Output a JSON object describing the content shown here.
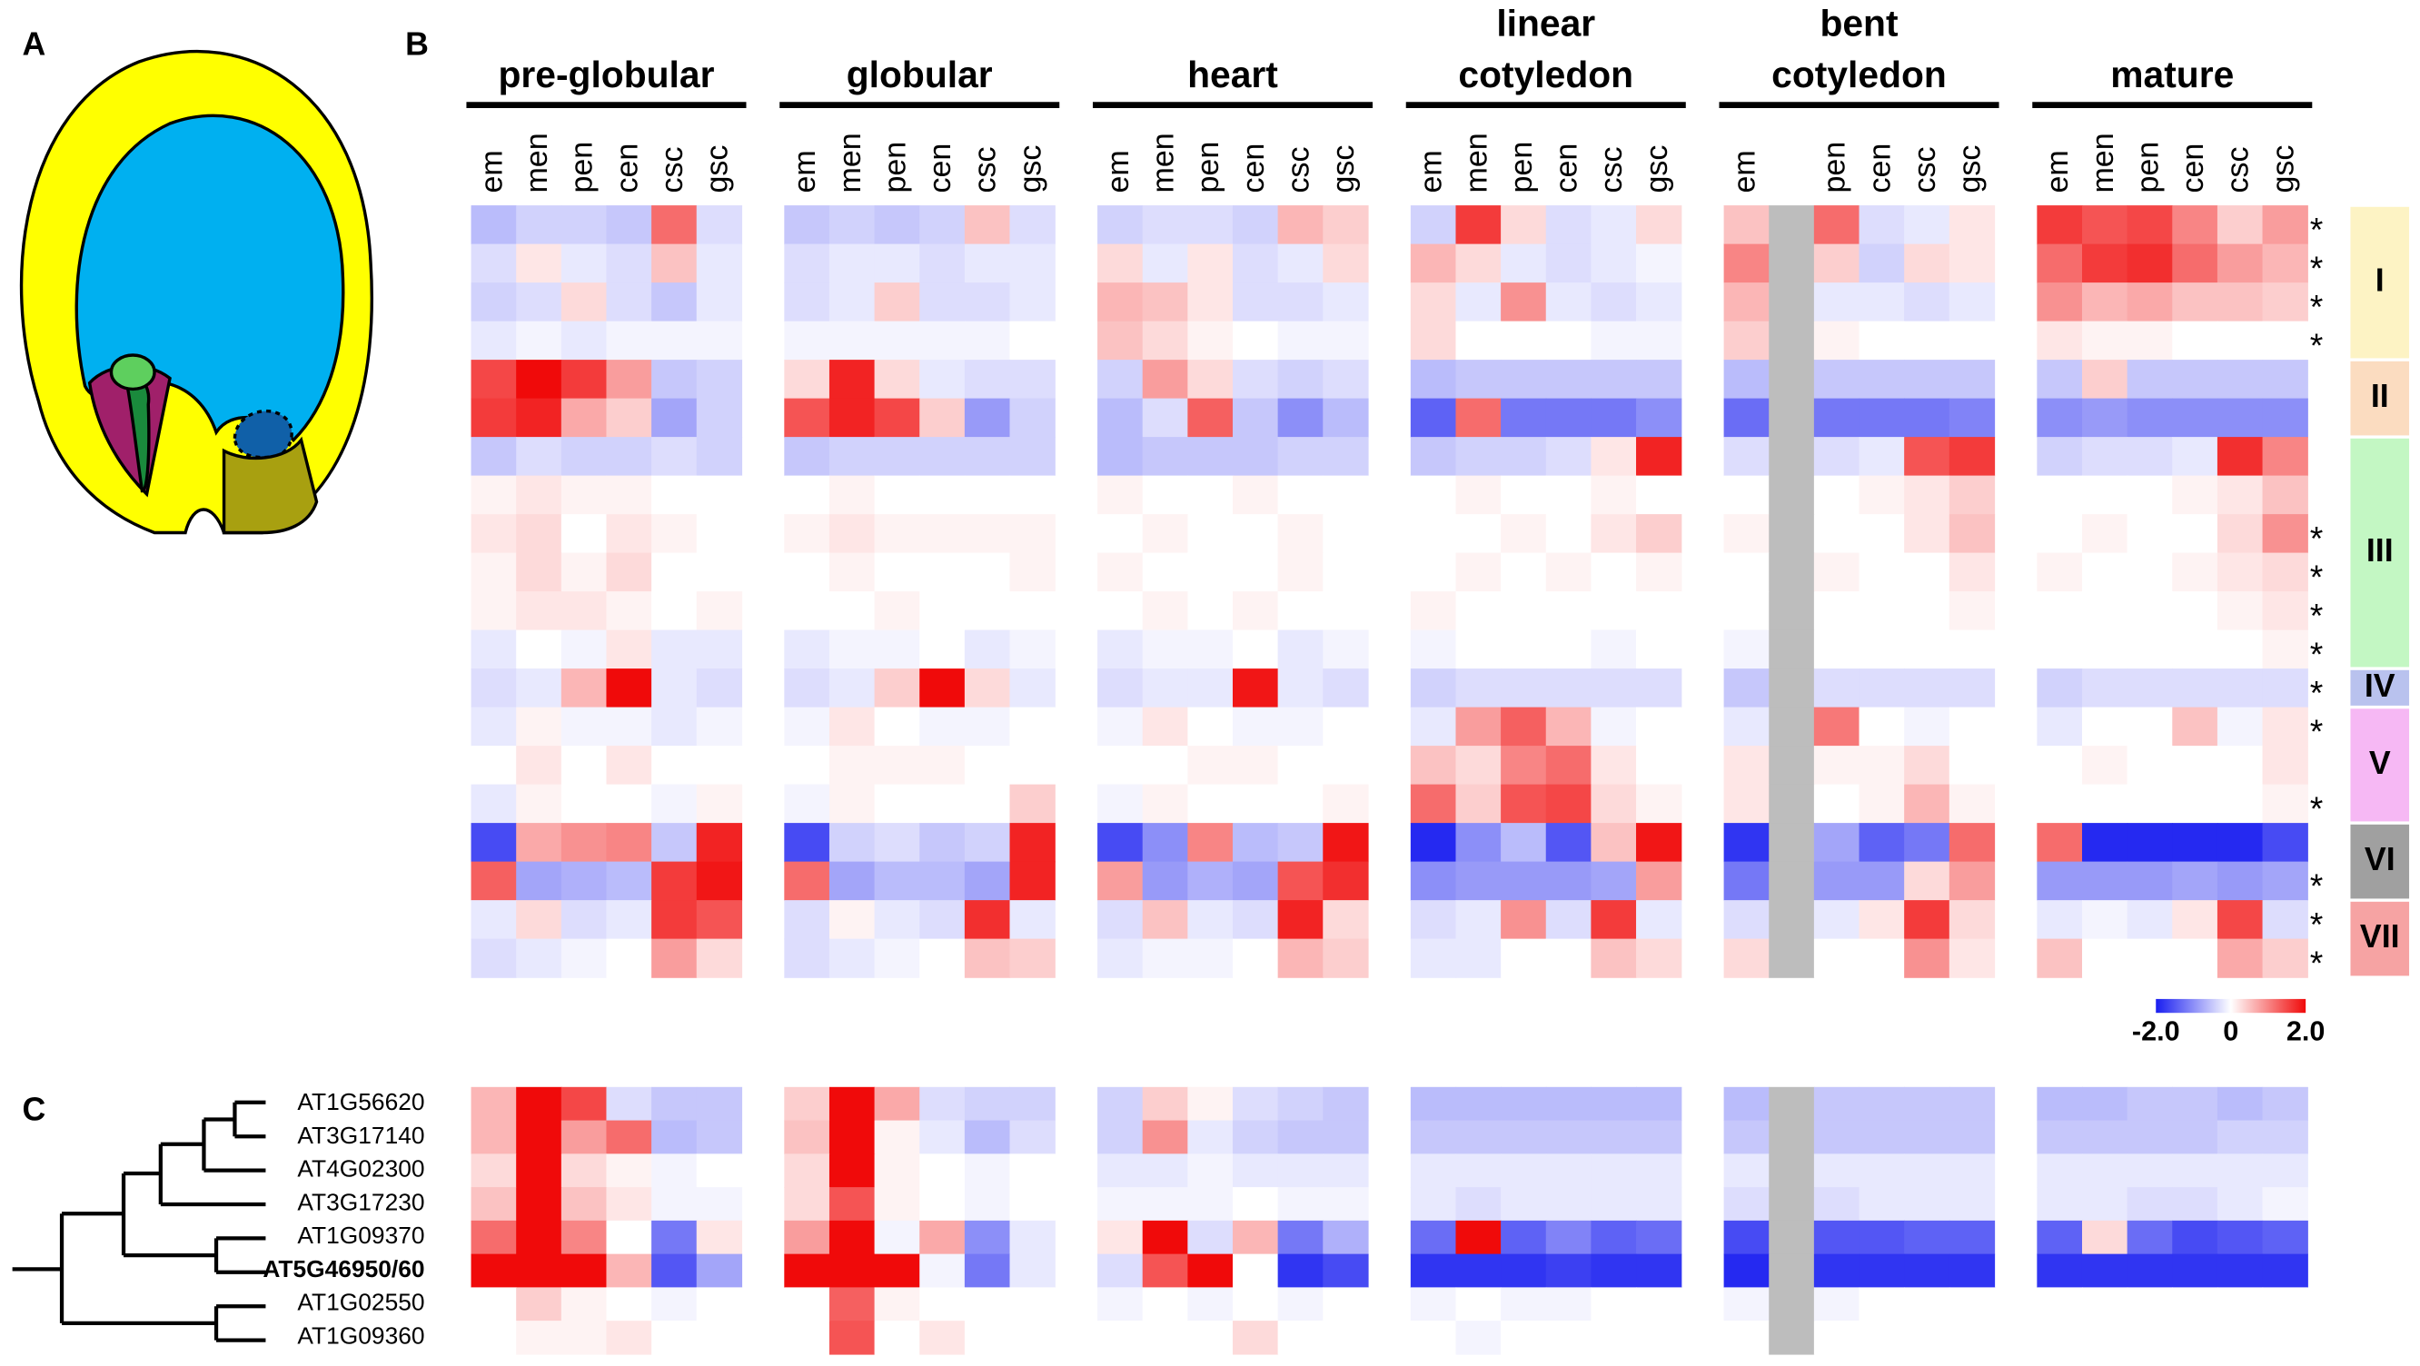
{
  "panel_labels": [
    "A",
    "B",
    "C"
  ],
  "stages": [
    {
      "name": [
        "pre-globular"
      ],
      "columns": [
        "em",
        "men",
        "pen",
        "cen",
        "csc",
        "gsc"
      ]
    },
    {
      "name": [
        "globular"
      ],
      "columns": [
        "em",
        "men",
        "pen",
        "cen",
        "csc",
        "gsc"
      ]
    },
    {
      "name": [
        "heart"
      ],
      "columns": [
        "em",
        "men",
        "pen",
        "cen",
        "csc",
        "gsc"
      ]
    },
    {
      "name": [
        "linear",
        "cotyledon"
      ],
      "columns": [
        "em",
        "men",
        "pen",
        "cen",
        "csc",
        "gsc"
      ]
    },
    {
      "name": [
        "bent",
        "cotyledon"
      ],
      "columns": [
        "em",
        null,
        "pen",
        "cen",
        "csc",
        "gsc"
      ]
    },
    {
      "name": [
        "mature"
      ],
      "columns": [
        "em",
        "men",
        "pen",
        "cen",
        "csc",
        "gsc"
      ]
    }
  ],
  "colorbar": {
    "lim": [
      -2,
      2
    ],
    "ticks": [
      {
        "value": -2,
        "label": "-2.0"
      },
      0,
      {
        "value": 2,
        "label": "2.0"
      }
    ]
  },
  "panel_b": {
    "rows": [
      [
        -0.6,
        -0.4,
        -0.4,
        -0.5,
        1.2,
        -0.3,
        -0.5,
        -0.4,
        -0.5,
        -0.4,
        0.5,
        -0.3,
        -0.4,
        -0.3,
        -0.3,
        -0.4,
        0.6,
        0.4,
        -0.4,
        1.6,
        0.3,
        -0.3,
        -0.2,
        0.3,
        0.5,
        null,
        1.2,
        -0.3,
        -0.2,
        0.2,
        1.6,
        1.4,
        1.5,
        1.0,
        0.4,
        0.8
      ],
      [
        -0.3,
        0.2,
        -0.2,
        -0.3,
        0.5,
        -0.2,
        -0.3,
        -0.2,
        -0.2,
        -0.3,
        -0.2,
        -0.2,
        0.3,
        -0.2,
        0.2,
        -0.3,
        -0.2,
        0.3,
        0.6,
        0.3,
        -0.2,
        -0.3,
        -0.2,
        -0.1,
        1.0,
        null,
        0.4,
        -0.4,
        0.3,
        0.2,
        1.2,
        1.6,
        1.7,
        1.2,
        0.8,
        0.6
      ],
      [
        -0.4,
        -0.3,
        0.3,
        -0.3,
        -0.5,
        -0.2,
        -0.3,
        -0.2,
        0.4,
        -0.3,
        -0.3,
        -0.2,
        0.6,
        0.5,
        0.2,
        -0.3,
        -0.3,
        -0.2,
        0.3,
        -0.2,
        0.9,
        -0.2,
        -0.3,
        -0.2,
        0.6,
        null,
        -0.2,
        -0.2,
        -0.3,
        -0.2,
        0.9,
        0.6,
        0.7,
        0.5,
        0.5,
        0.4
      ],
      [
        -0.2,
        -0.1,
        -0.2,
        -0.1,
        -0.1,
        -0.1,
        -0.1,
        -0.1,
        -0.1,
        -0.1,
        -0.1,
        0,
        0.5,
        0.3,
        0.1,
        0,
        -0.1,
        -0.1,
        0.3,
        0,
        0,
        0,
        -0.1,
        -0.1,
        0.4,
        null,
        0.1,
        0,
        0,
        0,
        0.2,
        0.1,
        0.1,
        0,
        0,
        0
      ],
      [
        1.5,
        2.0,
        1.6,
        0.8,
        -0.5,
        -0.4,
        0.3,
        1.8,
        0.3,
        -0.2,
        -0.3,
        -0.3,
        -0.4,
        0.8,
        0.3,
        -0.3,
        -0.4,
        -0.3,
        -0.6,
        -0.5,
        -0.5,
        -0.5,
        -0.5,
        -0.5,
        -0.6,
        null,
        -0.5,
        -0.5,
        -0.5,
        -0.5,
        -0.5,
        0.4,
        -0.5,
        -0.5,
        -0.5,
        -0.5
      ],
      [
        1.6,
        1.8,
        0.7,
        0.4,
        -0.8,
        -0.4,
        1.4,
        1.8,
        1.5,
        0.4,
        -0.9,
        -0.4,
        -0.6,
        -0.3,
        1.3,
        -0.5,
        -1.0,
        -0.6,
        -1.4,
        1.2,
        -1.2,
        -1.2,
        -1.2,
        -1.0,
        -1.3,
        null,
        -1.2,
        -1.2,
        -1.2,
        -1.1,
        -1.0,
        -0.9,
        -1.0,
        -1.0,
        -1.0,
        -1.0
      ],
      [
        -0.5,
        -0.3,
        -0.4,
        -0.4,
        -0.3,
        -0.4,
        -0.5,
        -0.4,
        -0.4,
        -0.4,
        -0.4,
        -0.4,
        -0.6,
        -0.5,
        -0.5,
        -0.5,
        -0.4,
        -0.4,
        -0.5,
        -0.4,
        -0.4,
        -0.3,
        0.2,
        1.8,
        -0.3,
        null,
        -0.3,
        -0.2,
        1.4,
        1.6,
        -0.4,
        -0.3,
        -0.3,
        -0.2,
        1.7,
        1.0
      ],
      [
        0.1,
        0.2,
        0.1,
        0.1,
        0,
        0,
        0,
        0.1,
        0,
        0,
        0,
        0,
        0.1,
        0,
        0,
        0.1,
        0,
        0,
        0,
        0.1,
        0,
        0,
        0.1,
        0,
        0,
        null,
        0,
        0.1,
        0.2,
        0.4,
        0,
        0,
        0,
        0.1,
        0.2,
        0.5
      ],
      [
        0.2,
        0.3,
        0,
        0.2,
        0.1,
        0,
        0.1,
        0.2,
        0.1,
        0.1,
        0.1,
        0.1,
        0,
        0.1,
        0,
        0,
        0.1,
        0,
        0,
        0,
        0.1,
        0,
        0.2,
        0.4,
        0.1,
        null,
        0,
        0,
        0.2,
        0.5,
        0,
        0.1,
        0,
        0,
        0.3,
        0.9
      ],
      [
        0.1,
        0.3,
        0.1,
        0.3,
        0,
        0,
        0,
        0.1,
        0,
        0,
        0,
        0.1,
        0.1,
        0,
        0,
        0,
        0.1,
        0,
        0,
        0.1,
        0,
        0.1,
        0,
        0.1,
        0,
        null,
        0.1,
        0,
        0,
        0.2,
        0.1,
        0,
        0,
        0.1,
        0.2,
        0.3
      ],
      [
        0.1,
        0.2,
        0.2,
        0.1,
        0,
        0.1,
        0,
        0,
        0.1,
        0,
        0,
        0,
        0,
        0.1,
        0,
        0.1,
        0,
        0,
        0.1,
        0,
        0,
        0,
        0,
        0,
        0,
        null,
        0,
        0,
        0,
        0.1,
        0,
        0,
        0,
        0,
        0.1,
        0.2
      ],
      [
        -0.2,
        0,
        -0.1,
        0.2,
        -0.2,
        -0.2,
        -0.2,
        -0.1,
        -0.1,
        0,
        -0.2,
        -0.1,
        -0.2,
        -0.1,
        -0.1,
        0,
        -0.2,
        -0.1,
        -0.1,
        0,
        0,
        0,
        -0.1,
        0,
        -0.1,
        null,
        0,
        0,
        0,
        0,
        0,
        0,
        0,
        0,
        0,
        0.1
      ],
      [
        -0.3,
        -0.2,
        0.6,
        2.0,
        -0.2,
        -0.3,
        -0.3,
        -0.2,
        0.4,
        2.0,
        0.3,
        -0.2,
        -0.3,
        -0.2,
        -0.2,
        1.9,
        -0.2,
        -0.3,
        -0.4,
        -0.3,
        -0.3,
        -0.3,
        -0.3,
        -0.3,
        -0.5,
        null,
        -0.3,
        -0.3,
        -0.3,
        -0.3,
        -0.4,
        -0.3,
        -0.3,
        -0.3,
        -0.3,
        -0.3
      ],
      [
        -0.2,
        0.1,
        -0.1,
        -0.1,
        -0.2,
        -0.1,
        -0.1,
        0.2,
        0,
        -0.1,
        -0.1,
        0,
        -0.1,
        0.2,
        0,
        -0.1,
        -0.1,
        0,
        -0.2,
        0.8,
        1.3,
        0.6,
        -0.1,
        0,
        -0.2,
        null,
        1.1,
        0,
        -0.1,
        0,
        -0.2,
        0,
        0,
        0.5,
        -0.1,
        0.2
      ],
      [
        0,
        0.2,
        0,
        0.2,
        0,
        0,
        0,
        0.1,
        0.1,
        0.1,
        0,
        0,
        0,
        0,
        0.1,
        0.1,
        0,
        0,
        0.5,
        0.3,
        1.0,
        1.2,
        0.2,
        0,
        0.2,
        null,
        0.1,
        0.1,
        0.3,
        0,
        0,
        0.1,
        0,
        0,
        0,
        0.2
      ],
      [
        -0.2,
        0.1,
        0,
        0,
        -0.1,
        0.1,
        -0.1,
        0.1,
        0,
        0,
        0,
        0.4,
        -0.1,
        0.1,
        0,
        0,
        0,
        0.1,
        1.2,
        0.4,
        1.4,
        1.5,
        0.3,
        0.1,
        0.2,
        null,
        0,
        0.1,
        0.6,
        0.1,
        0,
        0,
        0,
        0,
        0,
        0.1
      ],
      [
        -1.6,
        0.7,
        0.9,
        1.0,
        -0.5,
        1.8,
        -1.6,
        -0.4,
        -0.3,
        -0.5,
        -0.4,
        1.8,
        -1.6,
        -1.0,
        1.0,
        -0.6,
        -0.5,
        1.9,
        -1.9,
        -1.0,
        -0.6,
        -1.5,
        0.5,
        1.9,
        -1.8,
        null,
        -0.8,
        -1.4,
        -1.2,
        1.2,
        1.2,
        -1.9,
        -1.9,
        -1.9,
        -1.9,
        -1.6
      ],
      [
        1.3,
        -0.8,
        -0.7,
        -0.6,
        1.6,
        1.9,
        1.2,
        -0.8,
        -0.6,
        -0.6,
        -0.8,
        1.8,
        0.8,
        -0.9,
        -0.7,
        -0.8,
        1.4,
        1.7,
        -1.0,
        -0.9,
        -0.9,
        -0.9,
        -0.8,
        0.8,
        -1.2,
        null,
        -0.9,
        -0.9,
        0.3,
        0.8,
        -0.9,
        -0.9,
        -0.9,
        -0.8,
        -0.9,
        -0.8
      ],
      [
        -0.2,
        0.3,
        -0.3,
        -0.2,
        1.6,
        1.4,
        -0.3,
        0.1,
        -0.2,
        -0.3,
        1.7,
        -0.2,
        -0.3,
        0.5,
        -0.2,
        -0.3,
        1.8,
        0.3,
        -0.3,
        -0.2,
        0.9,
        -0.3,
        1.6,
        -0.2,
        -0.3,
        null,
        -0.2,
        0.2,
        1.6,
        0.3,
        -0.2,
        -0.1,
        -0.2,
        0.2,
        1.5,
        -0.3
      ],
      [
        -0.3,
        -0.2,
        -0.1,
        0,
        0.8,
        0.3,
        -0.3,
        -0.2,
        -0.1,
        0,
        0.5,
        0.4,
        -0.2,
        -0.1,
        -0.1,
        0,
        0.6,
        0.4,
        -0.2,
        -0.2,
        0,
        0,
        0.5,
        0.3,
        0.3,
        null,
        0,
        0,
        0.9,
        0.2,
        0.5,
        0,
        0,
        0,
        0.7,
        0.4
      ]
    ],
    "asterisk": "*",
    "asterisk_rows": [
      0,
      1,
      2,
      3,
      8,
      9,
      10,
      11,
      12,
      13,
      15,
      17,
      18,
      19
    ],
    "clusters": [
      {
        "label": "I",
        "color": "#fdf3c4",
        "rows": [
          0,
          3
        ]
      },
      {
        "label": "II",
        "color": "#fbdcc0",
        "rows": [
          4,
          5
        ]
      },
      {
        "label": "III",
        "color": "#c3f7c3",
        "rows": [
          6,
          11
        ]
      },
      {
        "label": "IV",
        "color": "#b9c2ee",
        "rows": [
          12,
          12
        ]
      },
      {
        "label": "V",
        "color": "#f6b8f4",
        "rows": [
          13,
          15
        ]
      },
      {
        "label": "VI",
        "color": "#a0a0a0",
        "rows": [
          16,
          17
        ]
      },
      {
        "label": "VII",
        "color": "#f6a3a3",
        "rows": [
          18,
          19
        ]
      }
    ]
  },
  "panel_c": {
    "genes": [
      "AT1G56620",
      "AT3G17140",
      "AT4G02300",
      "AT3G17230",
      "AT1G09370",
      "AT5G46950/60",
      "AT1G02550",
      "AT1G09360"
    ],
    "rows": [
      [
        0.6,
        2.0,
        1.5,
        -0.3,
        -0.5,
        -0.5,
        0.4,
        2.0,
        0.7,
        -0.3,
        -0.4,
        -0.4,
        -0.4,
        0.4,
        0.1,
        -0.3,
        -0.4,
        -0.5,
        -0.6,
        -0.6,
        -0.6,
        -0.6,
        -0.6,
        -0.6,
        -0.6,
        null,
        -0.5,
        -0.5,
        -0.5,
        -0.5,
        -0.6,
        -0.6,
        -0.5,
        -0.5,
        -0.6,
        -0.5
      ],
      [
        0.6,
        2.0,
        0.8,
        1.2,
        -0.6,
        -0.5,
        0.5,
        2.0,
        0.1,
        -0.2,
        -0.6,
        -0.3,
        -0.4,
        0.9,
        -0.2,
        -0.4,
        -0.5,
        -0.5,
        -0.5,
        -0.5,
        -0.5,
        -0.5,
        -0.5,
        -0.5,
        -0.5,
        null,
        -0.5,
        -0.5,
        -0.5,
        -0.5,
        -0.5,
        -0.5,
        -0.5,
        -0.5,
        -0.4,
        -0.4
      ],
      [
        0.3,
        2.0,
        0.3,
        0.1,
        -0.1,
        0,
        0.3,
        2.0,
        0.1,
        0,
        -0.1,
        0,
        -0.2,
        -0.2,
        -0.1,
        -0.2,
        -0.2,
        -0.2,
        -0.2,
        -0.2,
        -0.2,
        -0.2,
        -0.2,
        -0.2,
        -0.2,
        null,
        -0.2,
        -0.2,
        -0.2,
        -0.2,
        -0.2,
        -0.2,
        -0.2,
        -0.2,
        -0.2,
        -0.2
      ],
      [
        0.5,
        2.0,
        0.5,
        0.2,
        -0.1,
        -0.1,
        0.3,
        1.4,
        0.1,
        0,
        -0.1,
        0,
        -0.1,
        -0.1,
        -0.1,
        0,
        -0.1,
        -0.1,
        -0.2,
        -0.3,
        -0.2,
        -0.2,
        -0.2,
        -0.2,
        -0.3,
        null,
        -0.3,
        -0.2,
        -0.2,
        -0.2,
        -0.2,
        -0.2,
        -0.3,
        -0.3,
        -0.2,
        -0.1
      ],
      [
        1.2,
        2.0,
        1.0,
        0,
        -1.2,
        0.2,
        0.8,
        2.0,
        -0.1,
        0.7,
        -1.0,
        -0.2,
        0.2,
        2.0,
        -0.3,
        0.6,
        -1.2,
        -0.7,
        -1.3,
        2.0,
        -1.4,
        -1.1,
        -1.4,
        -1.3,
        -1.6,
        null,
        -1.5,
        -1.5,
        -1.4,
        -1.4,
        -1.4,
        0.3,
        -1.3,
        -1.6,
        -1.5,
        -1.4
      ],
      [
        2.0,
        2.0,
        2.0,
        0.6,
        -1.5,
        -0.8,
        2.0,
        2.0,
        2.0,
        -0.1,
        -1.2,
        -0.2,
        -0.3,
        1.4,
        2.0,
        0,
        -1.8,
        -1.6,
        -1.8,
        -1.8,
        -1.8,
        -1.7,
        -1.8,
        -1.8,
        -1.9,
        null,
        -1.8,
        -1.8,
        -1.8,
        -1.8,
        -1.8,
        -1.8,
        -1.8,
        -1.8,
        -1.8,
        -1.8
      ],
      [
        0,
        0.4,
        0.1,
        0,
        -0.1,
        0,
        0,
        1.3,
        0.1,
        0,
        0,
        0,
        -0.1,
        0,
        -0.1,
        0,
        -0.1,
        0,
        -0.1,
        0,
        -0.1,
        -0.1,
        0,
        0,
        -0.1,
        null,
        -0.1,
        0,
        0,
        0,
        0,
        0,
        0,
        0,
        0,
        0
      ],
      [
        0,
        0.1,
        0.1,
        0.2,
        0,
        0,
        0,
        1.4,
        0,
        0.2,
        0,
        0,
        0,
        0,
        0,
        0.3,
        0,
        0,
        0,
        -0.1,
        0,
        0,
        0,
        0,
        0,
        null,
        0,
        0,
        0,
        0,
        0,
        0,
        0,
        0,
        0,
        0
      ]
    ]
  }
}
